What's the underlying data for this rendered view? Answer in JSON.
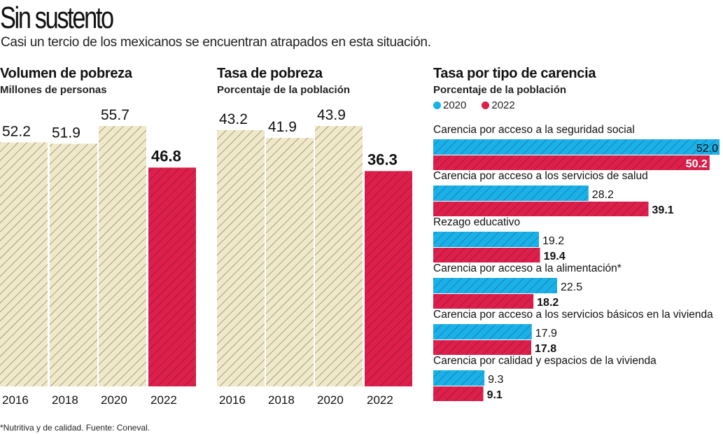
{
  "header": {
    "title": "Sin sustento",
    "subtitle": "Casi un tercio de los mexicanos se encuentran atrapados en esta situación."
  },
  "footnote": "*Nutritiva y de calidad. Fuente: Coneval.",
  "colors": {
    "beige": "#efe8c9",
    "red": "#dc1f4b",
    "blue": "#1ab0e8",
    "hatch": "#6b6550"
  },
  "chart_data": [
    {
      "type": "bar",
      "title": "Volumen de pobreza",
      "subtitle": "Millones de personas",
      "categories": [
        "2016",
        "2018",
        "2020",
        "2022"
      ],
      "values": [
        52.2,
        51.9,
        55.7,
        46.8
      ],
      "labels": [
        "52.2",
        "51.9",
        "55.7",
        "46.8"
      ],
      "highlight_index": 3,
      "xlabel": "",
      "ylabel": "Millones de personas",
      "ylim": [
        0,
        55.7
      ],
      "grid": false
    },
    {
      "type": "bar",
      "title": "Tasa de pobreza",
      "subtitle": "Porcentaje de la población",
      "categories": [
        "2016",
        "2018",
        "2020",
        "2022"
      ],
      "values": [
        43.2,
        41.9,
        43.9,
        36.3
      ],
      "labels": [
        "43.2",
        "41.9",
        "43.9",
        "36.3"
      ],
      "highlight_index": 3,
      "xlabel": "",
      "ylabel": "Porcentaje de la población",
      "ylim": [
        0,
        43.9
      ],
      "grid": false
    },
    {
      "type": "bar",
      "orientation": "horizontal",
      "title": "Tasa por tipo de carencia",
      "subtitle": "Porcentaje de la población",
      "legend": {
        "position": "top-left",
        "entries": [
          "2020",
          "2022"
        ]
      },
      "categories": [
        "Carencia por acceso a la seguridad social",
        "Carencia por acceso a los servicios de salud",
        "Rezago educativo",
        "Carencia por acceso a la alimentación*",
        "Carencia por acceso a los servicios básicos en la vivienda",
        "Carencia por calidad y espacios de la vivienda"
      ],
      "series": [
        {
          "name": "2020",
          "values": [
            52.0,
            28.2,
            19.2,
            22.5,
            17.9,
            9.3
          ],
          "labels": [
            "52.0",
            "28.2",
            "19.2",
            "22.5",
            "17.9",
            "9.3"
          ]
        },
        {
          "name": "2022",
          "values": [
            50.2,
            39.1,
            19.4,
            18.2,
            17.8,
            9.1
          ],
          "labels": [
            "50.2",
            "39.1",
            "19.4",
            "18.2",
            "17.8",
            "9.1"
          ]
        }
      ],
      "xlim": [
        0,
        52.0
      ],
      "grid": false
    }
  ]
}
